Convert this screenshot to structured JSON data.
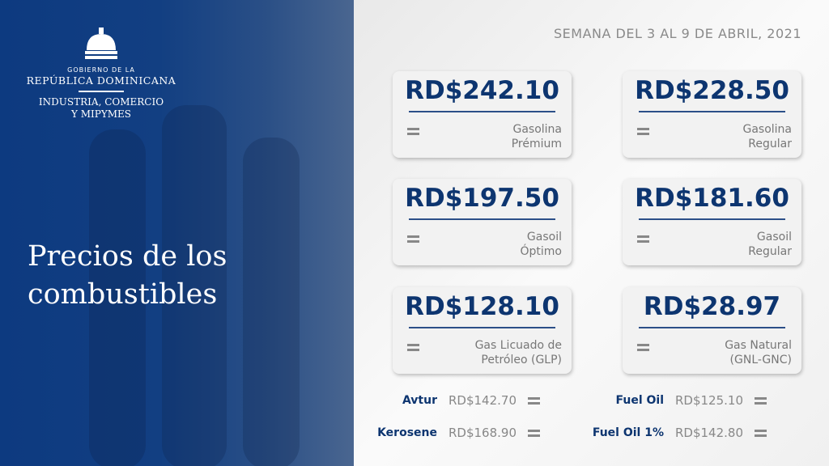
{
  "header": {
    "org_line1": "GOBIERNO DE LA",
    "org_line2": "REPÚBLICA DOMINICANA",
    "ministry_line1": "INDUSTRIA, COMERCIO",
    "ministry_line2": "Y MIPYMES",
    "title_line1": "Precios de los",
    "title_line2": "combustibles",
    "week": "SEMANA DEL 3 AL 9 DE ABRIL, 2021"
  },
  "colors": {
    "brand_blue": "#0d3a80",
    "price_text": "#0d3570"
  },
  "cards": [
    {
      "price": "RD$242.10",
      "name1": "Gasolina",
      "name2": "Prémium",
      "trend": "equal-icon"
    },
    {
      "price": "RD$228.50",
      "name1": "Gasolina",
      "name2": "Regular",
      "trend": "equal-icon"
    },
    {
      "price": "RD$197.50",
      "name1": "Gasoil",
      "name2": "Óptimo",
      "trend": "equal-icon"
    },
    {
      "price": "RD$181.60",
      "name1": "Gasoil",
      "name2": "Regular",
      "trend": "equal-icon"
    },
    {
      "price": "RD$128.10",
      "name1": "Gas Licuado de",
      "name2": "Petróleo (GLP)",
      "trend": "equal-icon"
    },
    {
      "price": "RD$28.97",
      "name1": "Gas Natural",
      "name2": "(GNL-GNC)",
      "trend": "equal-icon"
    }
  ],
  "others": [
    {
      "name": "Avtur",
      "price": "RD$142.70"
    },
    {
      "name": "Fuel Oil",
      "price": "RD$125.10"
    },
    {
      "name": "Kerosene",
      "price": "RD$168.90"
    },
    {
      "name": "Fuel Oil 1%",
      "price": "RD$142.80"
    }
  ]
}
